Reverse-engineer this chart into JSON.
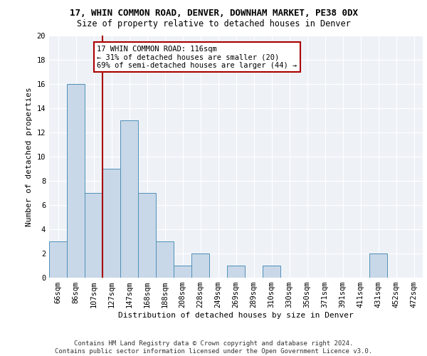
{
  "title1": "17, WHIN COMMON ROAD, DENVER, DOWNHAM MARKET, PE38 0DX",
  "title2": "Size of property relative to detached houses in Denver",
  "xlabel": "Distribution of detached houses by size in Denver",
  "ylabel": "Number of detached properties",
  "categories": [
    "66sqm",
    "86sqm",
    "107sqm",
    "127sqm",
    "147sqm",
    "168sqm",
    "188sqm",
    "208sqm",
    "228sqm",
    "249sqm",
    "269sqm",
    "289sqm",
    "310sqm",
    "330sqm",
    "350sqm",
    "371sqm",
    "391sqm",
    "411sqm",
    "431sqm",
    "452sqm",
    "472sqm"
  ],
  "values": [
    3,
    16,
    7,
    9,
    13,
    7,
    3,
    1,
    2,
    0,
    1,
    0,
    1,
    0,
    0,
    0,
    0,
    0,
    2,
    0,
    0
  ],
  "bar_color": "#c8d8e8",
  "bar_edge_color": "#5090b8",
  "vline_color": "#aa0000",
  "annotation_text": "17 WHIN COMMON ROAD: 116sqm\n← 31% of detached houses are smaller (20)\n69% of semi-detached houses are larger (44) →",
  "annotation_box_color": "#aa0000",
  "ylim": [
    0,
    20
  ],
  "yticks": [
    0,
    2,
    4,
    6,
    8,
    10,
    12,
    14,
    16,
    18,
    20
  ],
  "background_color": "#eef2f7",
  "footer_text": "Contains HM Land Registry data © Crown copyright and database right 2024.\nContains public sector information licensed under the Open Government Licence v3.0.",
  "title1_fontsize": 9,
  "title2_fontsize": 8.5,
  "xlabel_fontsize": 8,
  "ylabel_fontsize": 8,
  "tick_fontsize": 7.5,
  "annotation_fontsize": 7.5,
  "footer_fontsize": 6.5
}
